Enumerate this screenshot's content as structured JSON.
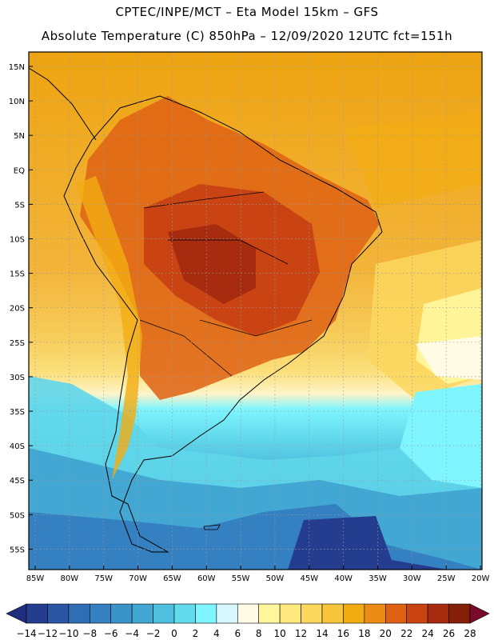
{
  "header": {
    "line1": "CPTEC/INPE/MCT –  Eta Model 15km – GFS",
    "line2": "Absolute Temperature (C) 850hPa – 12/09/2020 12UTC fct=151h"
  },
  "map": {
    "lat_labels": [
      "15N",
      "10N",
      "5N",
      "EQ",
      "5S",
      "10S",
      "15S",
      "20S",
      "25S",
      "30S",
      "35S",
      "40S",
      "45S",
      "50S",
      "55S"
    ],
    "lon_labels": [
      "85W",
      "80W",
      "75W",
      "70W",
      "65W",
      "60W",
      "55W",
      "50W",
      "45W",
      "40W",
      "35W",
      "30W",
      "25W",
      "20W"
    ],
    "frame_color": "#000000",
    "land_outline_color": "#000000"
  },
  "colorbar": {
    "tick_labels": [
      "-14",
      "-12",
      "-10",
      "-8",
      "-6",
      "-4",
      "-2",
      "0",
      "2",
      "4",
      "6",
      "8",
      "10",
      "12",
      "14",
      "16",
      "18",
      "20",
      "22",
      "24",
      "26",
      "28"
    ],
    "colors": [
      "#253d8f",
      "#2a56a3",
      "#2f6db4",
      "#3580c0",
      "#3a94c9",
      "#42a7d3",
      "#4fc0df",
      "#62dced",
      "#7ff5ff",
      "#d6f7ff",
      "#fffbe4",
      "#fff79e",
      "#ffe87d",
      "#fbd75e",
      "#f6c53a",
      "#f2ac12",
      "#ea8c15",
      "#de6114",
      "#c94412",
      "#a72b0e",
      "#852008"
    ],
    "under_color": "#1f2f7e",
    "over_color": "#7a0a2a"
  }
}
